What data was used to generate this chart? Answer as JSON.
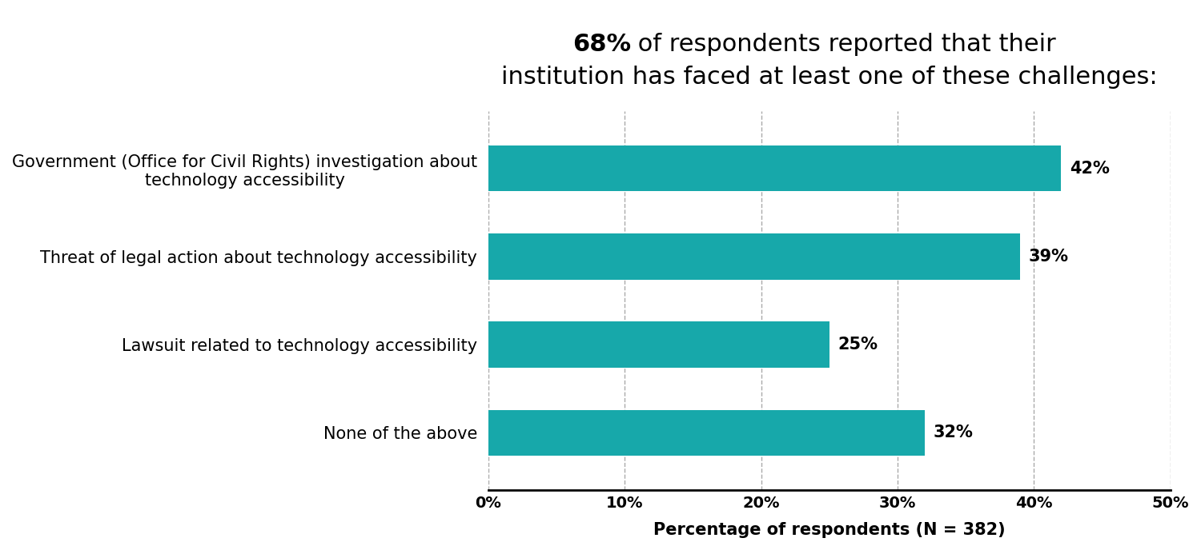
{
  "title_line1_bold": "68%",
  "title_line1_rest": " of respondents reported that their",
  "title_line2": "institution has faced at least one of these challenges:",
  "categories": [
    "Government (Office for Civil Rights) investigation about\ntechnology accessibility",
    "Threat of legal action about technology accessibility",
    "Lawsuit related to technology accessibility",
    "None of the above"
  ],
  "values": [
    42,
    39,
    25,
    32
  ],
  "bar_color": "#17a8aa",
  "xlabel": "Percentage of respondents (N = 382)",
  "xlim": [
    0,
    50
  ],
  "xticks": [
    0,
    10,
    20,
    30,
    40,
    50
  ],
  "xtick_labels": [
    "0%",
    "10%",
    "20%",
    "30%",
    "40%",
    "50%"
  ],
  "background_color": "#ffffff",
  "bar_height": 0.52,
  "label_fontsize": 15,
  "value_fontsize": 15,
  "title_fontsize": 22,
  "xlabel_fontsize": 15,
  "xtick_fontsize": 14
}
